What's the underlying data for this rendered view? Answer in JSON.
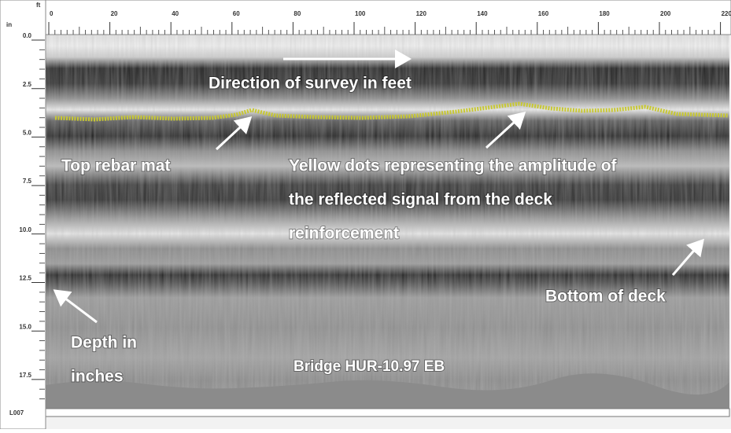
{
  "x_ruler": {
    "unit": "ft",
    "labels": [
      0,
      20,
      40,
      60,
      80,
      100,
      120,
      140,
      160,
      180,
      200,
      220
    ]
  },
  "y_ruler": {
    "unit": "in",
    "labels": [
      "0.0",
      "2.5",
      "5.0",
      "7.5",
      "10.0",
      "12.5",
      "15.0",
      "17.5"
    ]
  },
  "file_label": "L007",
  "annotations": {
    "survey_direction": "Direction of survey in feet",
    "top_rebar": "Top rebar mat",
    "yellow_dots": [
      "Yellow dots representing the amplitude of",
      "the reflected signal from the deck",
      "reinforcement"
    ],
    "bottom_of_deck": "Bottom of deck",
    "depth": [
      "Depth in",
      "inches"
    ],
    "bridge": "Bridge HUR-10.97 EB"
  }
}
